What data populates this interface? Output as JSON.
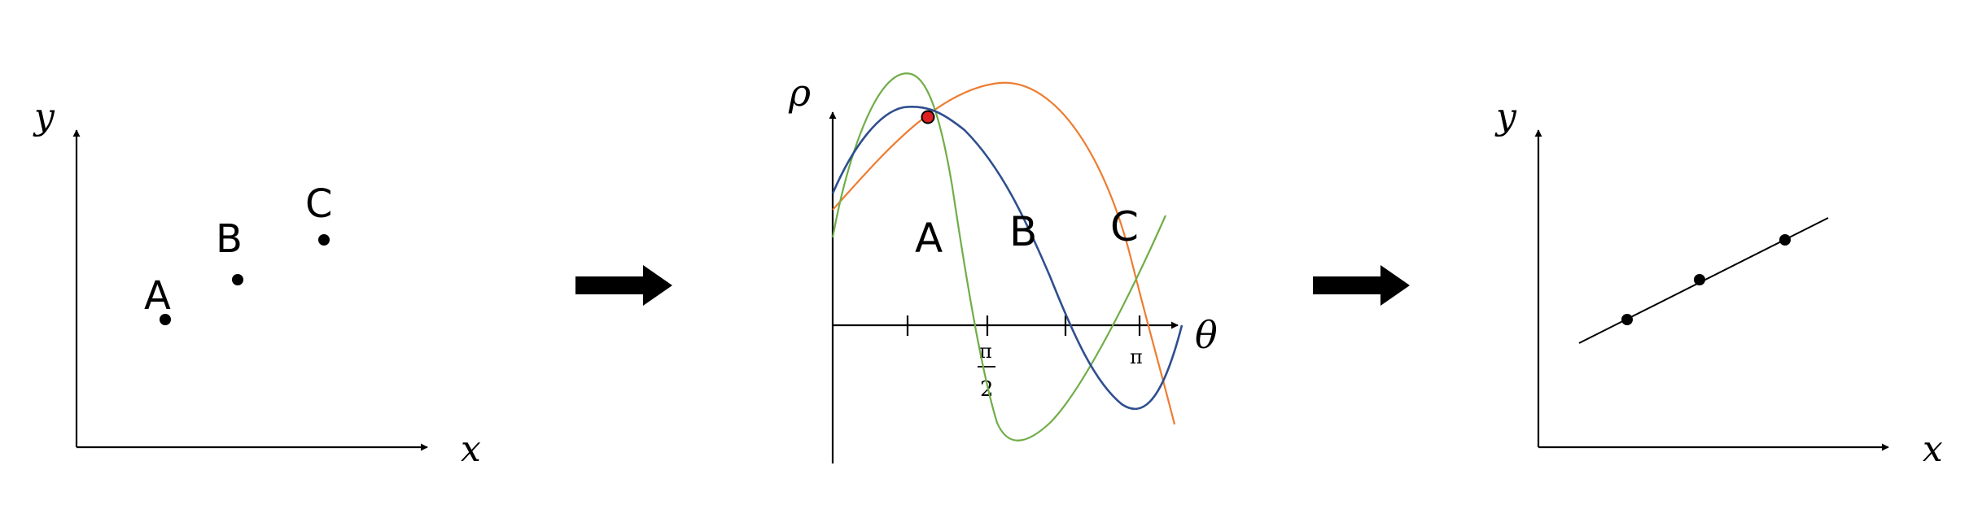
{
  "colors": {
    "curve_a": "#4aa0d6",
    "curve_b": "#70ad47",
    "curve_c": "#ed7d31",
    "curve_blue": "#2f4f8f",
    "intersection": "#e02020",
    "ink": "#000000"
  },
  "panel_left": {
    "x_axis_label": "x",
    "y_axis_label": "y",
    "points": [
      {
        "label": "A"
      },
      {
        "label": "B"
      },
      {
        "label": "C"
      }
    ]
  },
  "panel_middle": {
    "x_axis_label": "θ",
    "y_axis_label": "ρ",
    "curve_labels": [
      "A",
      "B",
      "C"
    ],
    "tick_pi_half_numerator": "π",
    "tick_pi_half_denominator": "2",
    "tick_pi": "π"
  },
  "panel_right": {
    "x_axis_label": "x",
    "y_axis_label": "y"
  },
  "arrows": [
    {
      "name": "arrow-1"
    },
    {
      "name": "arrow-2"
    }
  ]
}
